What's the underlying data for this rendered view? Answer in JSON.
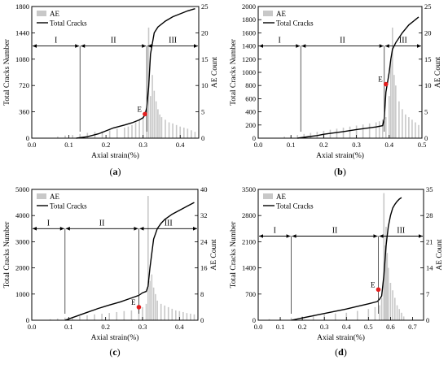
{
  "panels": [
    {
      "panel_label": "(a)",
      "chart_data": {
        "type": "line",
        "xlabel": "Axial strain(%)",
        "ylabel": "Total Cracks Number",
        "y2label": "AE Count",
        "xlim": [
          0,
          0.45
        ],
        "xticks": [
          "0.0",
          "0.1",
          "0.2",
          "0.3",
          "0.4"
        ],
        "xtick_values": [
          0,
          0.1,
          0.2,
          0.3,
          0.4
        ],
        "ylim": [
          0,
          1800
        ],
        "yticks": [
          "0",
          "360",
          "720",
          "1080",
          "1440",
          "1800"
        ],
        "ytick_values": [
          0,
          360,
          720,
          1080,
          1440,
          1800
        ],
        "y2lim": [
          0,
          25
        ],
        "y2ticks": [
          "0",
          "5",
          "10",
          "15",
          "20",
          "25"
        ],
        "y2tick_values": [
          0,
          5,
          10,
          15,
          20,
          25
        ],
        "legend": [
          "AE",
          "Total Cracks"
        ],
        "legend_position": "top-left",
        "stage_labels": [
          "I",
          "II",
          "III"
        ],
        "stage_boundaries": [
          0.13,
          0.31
        ],
        "stage_arrow_level": 1260,
        "point_label": "E",
        "point": [
          0.305,
          330
        ],
        "series": [
          {
            "name": "Total Cracks",
            "x": [
              0.12,
              0.15,
              0.18,
              0.2,
              0.22,
              0.25,
              0.27,
              0.29,
              0.3,
              0.305,
              0.31,
              0.315,
              0.32,
              0.33,
              0.34,
              0.36,
              0.38,
              0.4,
              0.42,
              0.44
            ],
            "y": [
              0,
              20,
              60,
              100,
              140,
              180,
              210,
              250,
              280,
              320,
              420,
              700,
              1150,
              1440,
              1520,
              1600,
              1660,
              1700,
              1740,
              1770
            ]
          },
          {
            "name": "AE",
            "x": [
              0.07,
              0.09,
              0.11,
              0.13,
              0.15,
              0.17,
              0.19,
              0.21,
              0.23,
              0.25,
              0.26,
              0.27,
              0.28,
              0.29,
              0.3,
              0.31,
              0.315,
              0.32,
              0.325,
              0.33,
              0.335,
              0.34,
              0.345,
              0.35,
              0.36,
              0.37,
              0.38,
              0.39,
              0.4,
              0.41,
              0.42,
              0.43,
              0.44
            ],
            "y": [
              0.3,
              0.5,
              0.6,
              0.8,
              1.0,
              1.2,
              1.3,
              1.5,
              1.8,
              2.0,
              2.2,
              2.5,
              3.0,
              3.5,
              4.0,
              6.0,
              21.0,
              8.0,
              12.0,
              9.0,
              7.0,
              5.5,
              4.5,
              4.0,
              3.5,
              3.0,
              2.8,
              2.5,
              2.2,
              2.0,
              1.8,
              1.5,
              1.2
            ]
          }
        ]
      }
    },
    {
      "panel_label": "(b)",
      "chart_data": {
        "type": "line",
        "xlabel": "Axial strain(%)",
        "ylabel": "Total Cracks Number",
        "y2label": "AE Count",
        "xlim": [
          0,
          0.5
        ],
        "xticks": [
          "0.0",
          "0.1",
          "0.2",
          "0.3",
          "0.4",
          "0.5"
        ],
        "xtick_values": [
          0,
          0.1,
          0.2,
          0.3,
          0.4,
          0.5
        ],
        "ylim": [
          0,
          2000
        ],
        "yticks": [
          "0",
          "200",
          "400",
          "600",
          "800",
          "1000",
          "1200",
          "1400",
          "1600",
          "1800",
          "2000"
        ],
        "ytick_values": [
          0,
          200,
          400,
          600,
          800,
          1000,
          1200,
          1400,
          1600,
          1800,
          2000
        ],
        "y2lim": [
          0,
          25
        ],
        "y2ticks": [
          "0",
          "5",
          "10",
          "15",
          "20",
          "25"
        ],
        "y2tick_values": [
          0,
          5,
          10,
          15,
          20,
          25
        ],
        "legend": [
          "AE",
          "Total Cracks"
        ],
        "legend_position": "top-left",
        "stage_labels": [
          "I",
          "II",
          "III"
        ],
        "stage_boundaries": [
          0.13,
          0.385
        ],
        "stage_arrow_level": 1400,
        "point_label": "E",
        "point": [
          0.39,
          820
        ],
        "series": [
          {
            "name": "Total Cracks",
            "x": [
              0.12,
              0.15,
              0.18,
              0.2,
              0.23,
              0.26,
              0.3,
              0.33,
              0.36,
              0.38,
              0.385,
              0.39,
              0.4,
              0.405,
              0.41,
              0.42,
              0.44,
              0.46,
              0.48,
              0.49
            ],
            "y": [
              0,
              20,
              40,
              60,
              80,
              100,
              130,
              150,
              170,
              190,
              300,
              700,
              1000,
              1200,
              1350,
              1450,
              1600,
              1720,
              1800,
              1840
            ]
          },
          {
            "name": "AE",
            "x": [
              0.08,
              0.1,
              0.12,
              0.14,
              0.16,
              0.18,
              0.2,
              0.22,
              0.24,
              0.26,
              0.28,
              0.3,
              0.32,
              0.34,
              0.36,
              0.37,
              0.38,
              0.39,
              0.4,
              0.405,
              0.41,
              0.415,
              0.42,
              0.43,
              0.44,
              0.45,
              0.46,
              0.47,
              0.48,
              0.49
            ],
            "y": [
              0.3,
              0.4,
              0.6,
              0.8,
              1.0,
              1.2,
              1.4,
              1.6,
              1.8,
              2.0,
              2.2,
              2.4,
              2.6,
              2.8,
              3.0,
              3.2,
              3.5,
              4.0,
              8.0,
              15.0,
              21.0,
              12.0,
              10.0,
              7.0,
              5.5,
              4.5,
              4.0,
              3.5,
              3.0,
              2.5
            ]
          }
        ]
      }
    },
    {
      "panel_label": "(c)",
      "chart_data": {
        "type": "line",
        "xlabel": "Axial strain(%)",
        "ylabel": "Total Cracks Number",
        "y2label": "AE Count",
        "xlim": [
          0,
          0.45
        ],
        "xticks": [
          "0.0",
          "0.1",
          "0.2",
          "0.3",
          "0.4"
        ],
        "xtick_values": [
          0,
          0.1,
          0.2,
          0.3,
          0.4
        ],
        "ylim": [
          0,
          5000
        ],
        "yticks": [
          "0",
          "1000",
          "2000",
          "3000",
          "4000",
          "5000"
        ],
        "ytick_values": [
          0,
          1000,
          2000,
          3000,
          4000,
          5000
        ],
        "y2lim": [
          0,
          40
        ],
        "y2ticks": [
          "0",
          "8",
          "16",
          "24",
          "32",
          "40"
        ],
        "y2tick_values": [
          0,
          8,
          16,
          24,
          32,
          40
        ],
        "legend": [
          "AE",
          "Total Cracks"
        ],
        "legend_position": "top-left",
        "stage_labels": [
          "I",
          "II",
          "III"
        ],
        "stage_boundaries": [
          0.09,
          0.29
        ],
        "stage_arrow_level": 3500,
        "point_label": "E",
        "point": [
          0.29,
          500
        ],
        "series": [
          {
            "name": "Total Cracks",
            "x": [
              0.09,
              0.12,
              0.15,
              0.18,
              0.21,
              0.24,
              0.27,
              0.29,
              0.3,
              0.31,
              0.315,
              0.32,
              0.33,
              0.34,
              0.35,
              0.36,
              0.38,
              0.4,
              0.42,
              0.44
            ],
            "y": [
              0,
              150,
              300,
              450,
              580,
              700,
              850,
              950,
              1050,
              1100,
              1300,
              2000,
              3100,
              3500,
              3700,
              3850,
              4050,
              4200,
              4350,
              4500
            ]
          },
          {
            "name": "AE",
            "x": [
              0.05,
              0.07,
              0.09,
              0.11,
              0.13,
              0.15,
              0.17,
              0.19,
              0.21,
              0.23,
              0.25,
              0.27,
              0.29,
              0.3,
              0.31,
              0.315,
              0.32,
              0.325,
              0.33,
              0.335,
              0.34,
              0.35,
              0.36,
              0.37,
              0.38,
              0.39,
              0.4,
              0.41,
              0.42,
              0.43,
              0.44
            ],
            "y": [
              0.3,
              0.5,
              0.8,
              1.0,
              1.2,
              1.5,
              1.8,
              2.0,
              2.2,
              2.5,
              2.8,
              3.0,
              3.5,
              4.0,
              5.0,
              38.0,
              12.0,
              14.0,
              10.0,
              8.0,
              6.0,
              5.0,
              4.5,
              4.0,
              3.5,
              3.0,
              2.8,
              2.5,
              2.2,
              2.0,
              1.8
            ]
          }
        ]
      }
    },
    {
      "panel_label": "(d)",
      "chart_data": {
        "type": "line",
        "xlabel": "Axial strain(%)",
        "ylabel": "Total Cracks Number",
        "y2label": "AE Count",
        "xlim": [
          0,
          0.75
        ],
        "xticks": [
          "0.0",
          "0.1",
          "0.2",
          "0.3",
          "0.4",
          "0.5",
          "0.6",
          "0.7"
        ],
        "xtick_values": [
          0,
          0.1,
          0.2,
          0.3,
          0.4,
          0.5,
          0.6,
          0.7
        ],
        "ylim": [
          0,
          3500
        ],
        "yticks": [
          "0",
          "700",
          "1400",
          "2100",
          "2800",
          "3500"
        ],
        "ytick_values": [
          0,
          700,
          1400,
          2100,
          2800,
          3500
        ],
        "y2lim": [
          0,
          35
        ],
        "y2ticks": [
          "0",
          "7",
          "14",
          "21",
          "28",
          "35"
        ],
        "y2tick_values": [
          0,
          7,
          14,
          21,
          28,
          35
        ],
        "legend": [
          "AE",
          "Total Cracks"
        ],
        "legend_position": "top-left",
        "stage_labels": [
          "I",
          "II",
          "III"
        ],
        "stage_boundaries": [
          0.15,
          0.545
        ],
        "stage_arrow_level": 2250,
        "point_label": "E",
        "point": [
          0.545,
          820
        ],
        "series": [
          {
            "name": "Total Cracks",
            "x": [
              0.15,
              0.2,
              0.25,
              0.3,
              0.35,
              0.4,
              0.45,
              0.5,
              0.54,
              0.55,
              0.56,
              0.57,
              0.58,
              0.59,
              0.6,
              0.61,
              0.62,
              0.63,
              0.64,
              0.65
            ],
            "y": [
              0,
              60,
              120,
              180,
              240,
              300,
              370,
              440,
              500,
              560,
              650,
              1200,
              2000,
              2500,
              2800,
              3000,
              3100,
              3180,
              3240,
              3280
            ]
          },
          {
            "name": "AE",
            "x": [
              0.05,
              0.1,
              0.15,
              0.2,
              0.25,
              0.3,
              0.35,
              0.4,
              0.45,
              0.5,
              0.53,
              0.55,
              0.56,
              0.57,
              0.575,
              0.58,
              0.585,
              0.59,
              0.6,
              0.61,
              0.62,
              0.63,
              0.64,
              0.65,
              0.66
            ],
            "y": [
              0.3,
              0.5,
              0.7,
              1.0,
              1.2,
              1.5,
              1.8,
              2.0,
              2.5,
              3.0,
              3.5,
              4.0,
              6.0,
              34.0,
              20.0,
              25.0,
              18.0,
              14.0,
              10.0,
              8.0,
              6.0,
              4.0,
              3.0,
              2.0,
              1.0
            ]
          }
        ]
      }
    }
  ]
}
